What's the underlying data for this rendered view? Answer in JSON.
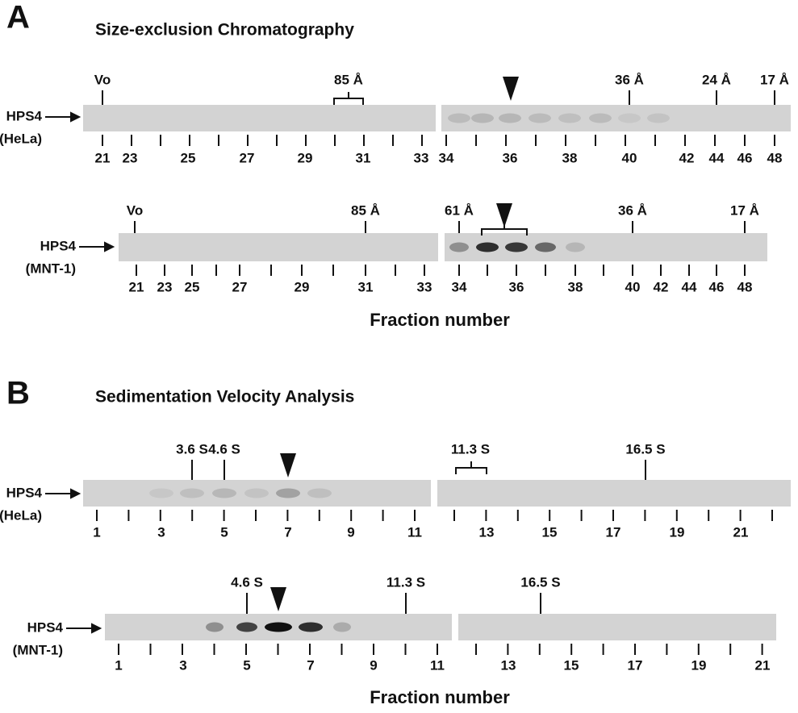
{
  "panel_a": {
    "letter": "A",
    "title": "Size-exclusion Chromatography",
    "x_axis_title": "Fraction number",
    "blots": [
      {
        "protein": "HPS4",
        "cell_line": "(HeLa)",
        "markers": [
          "Vo",
          "85 Å",
          "36 Å",
          "24 Å",
          "17 Å"
        ],
        "fractions": [
          "21",
          "23",
          "25",
          "27",
          "29",
          "31",
          "33",
          "34",
          "36",
          "38",
          "40",
          "42",
          "44",
          "46",
          "48"
        ]
      },
      {
        "protein": "HPS4",
        "cell_line": "(MNT-1)",
        "markers": [
          "Vo",
          "85 Å",
          "61 Å",
          "36 Å",
          "17 Å"
        ],
        "fractions": [
          "21",
          "23",
          "25",
          "27",
          "29",
          "31",
          "33",
          "34",
          "36",
          "38",
          "40",
          "42",
          "44",
          "46",
          "48"
        ]
      }
    ]
  },
  "panel_b": {
    "letter": "B",
    "title": "Sedimentation Velocity Analysis",
    "x_axis_title": "Fraction number",
    "blots": [
      {
        "protein": "HPS4",
        "cell_line": "(HeLa)",
        "markers": [
          "3.6 S",
          "4.6 S",
          "11.3 S",
          "16.5 S"
        ],
        "fractions": [
          "1",
          "3",
          "5",
          "7",
          "9",
          "11",
          "13",
          "15",
          "17",
          "19",
          "21"
        ]
      },
      {
        "protein": "HPS4",
        "cell_line": "(MNT-1)",
        "markers": [
          "4.6 S",
          "11.3 S",
          "16.5 S"
        ],
        "fractions": [
          "1",
          "3",
          "5",
          "7",
          "9",
          "11",
          "13",
          "15",
          "17",
          "19",
          "21"
        ]
      }
    ]
  }
}
